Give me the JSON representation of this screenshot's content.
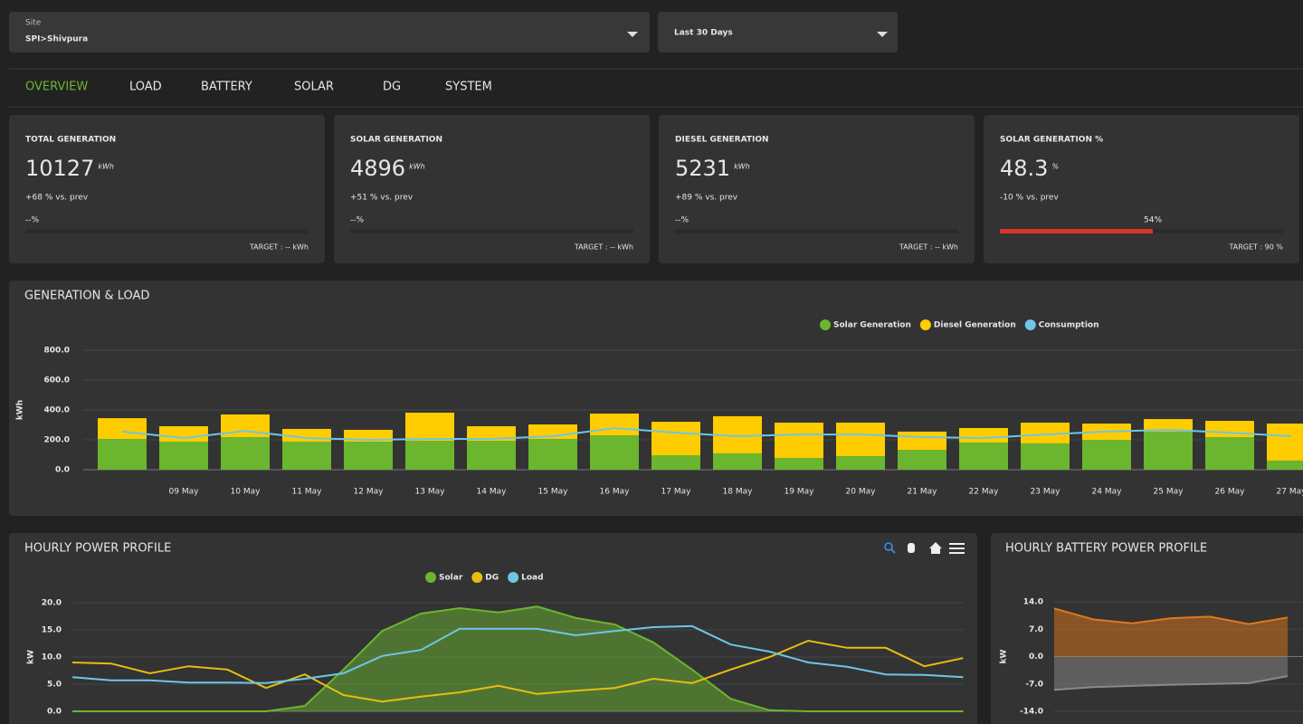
{
  "filters": {
    "site_label": "Site",
    "site": "SPI>Shivpura",
    "period": "Last 30 Days"
  },
  "tabs": [
    "OVERVIEW",
    "LOAD",
    "BATTERY",
    "SOLAR",
    "DG",
    "SYSTEM"
  ],
  "kpis": [
    {
      "title": "TOTAL GENERATION",
      "value": 10127,
      "unit": "kWh",
      "change": "+68 % vs. prev",
      "progress_label": "--%",
      "target": "TARGET : -- kWh"
    },
    {
      "title": "SOLAR GENERATION",
      "value": 4896,
      "unit": "kWh",
      "change": "+51 % vs. prev",
      "progress_label": "--%",
      "target": "TARGET : -- kWh"
    },
    {
      "title": "DIESEL GENERATION",
      "value": 5231,
      "unit": "kWh",
      "change": "+89 % vs. prev",
      "progress_label": "--%",
      "target": "TARGET : -- kWh"
    },
    {
      "title": "SOLAR GENERATION %",
      "value": 48.3,
      "unit": "%",
      "change": "-10 % vs. prev",
      "progress": 54,
      "progress_label": "54%",
      "target": "TARGET : 90 %",
      "progress_color": "#d9342b"
    }
  ],
  "chart_data": [
    {
      "type": "bar",
      "title": "GENERATION & LOAD",
      "ylabel": "kWh",
      "categories": [
        null,
        "09 May",
        "10 May",
        "11 May",
        "12 May",
        "13 May",
        "14 May",
        "15 May",
        "16 May",
        "17 May",
        "18 May",
        "19 May",
        "20 May",
        "21 May",
        "22 May",
        "23 May",
        "24 May",
        "25 May",
        "26 May",
        "27 May"
      ],
      "series": [
        {
          "name": "Solar Generation",
          "type": "bar",
          "color": "#6bb52f",
          "values": [
            206,
            188,
            218,
            188,
            188,
            194,
            194,
            206,
            230,
            97,
            109,
            79,
            91,
            133,
            182,
            176,
            200,
            255,
            218,
            61
          ]
        },
        {
          "name": "Diesel Generation",
          "type": "bar",
          "color": "#ffcc00",
          "values": [
            139,
            103,
            152,
            85,
            79,
            188,
            97,
            97,
            146,
            224,
            249,
            236,
            224,
            122,
            97,
            139,
            109,
            84,
            109,
            248
          ]
        },
        {
          "name": "Consumption",
          "type": "line",
          "color": "#6ec6e6",
          "values": [
            255,
            212,
            260,
            212,
            200,
            206,
            206,
            224,
            279,
            248,
            224,
            236,
            236,
            218,
            212,
            236,
            255,
            267,
            248,
            224
          ]
        }
      ],
      "ylim": [
        0,
        800
      ],
      "yticks": [
        {
          "value": 0,
          "label": "0.0"
        },
        {
          "value": 200,
          "label": "200.0"
        },
        {
          "value": 400,
          "label": "400.0"
        },
        {
          "value": 600,
          "label": "600.0"
        },
        {
          "value": 800,
          "label": "800.0"
        }
      ],
      "grid": true,
      "legend": "top"
    },
    {
      "type": "line",
      "title": "HOURLY POWER PROFILE",
      "ylabel": "kW",
      "series": [
        {
          "name": "Solar",
          "type": "area",
          "color": "#6bb52f",
          "values": [
            0,
            0,
            0,
            0,
            0,
            0,
            1,
            7.7,
            14.8,
            18,
            19,
            18.2,
            19.3,
            17.2,
            16,
            12.7,
            7.7,
            2.3,
            0.2,
            0,
            0,
            0,
            0,
            0
          ]
        },
        {
          "name": "DG",
          "type": "line",
          "color": "#e8bd10",
          "values": [
            9,
            8.8,
            7,
            8.3,
            7.7,
            4.3,
            6.8,
            3,
            1.8,
            2.7,
            3.5,
            4.7,
            3.2,
            3.8,
            4.3,
            6,
            5.2,
            7.7,
            10,
            13,
            11.7,
            11.7,
            8.3,
            9.8
          ]
        },
        {
          "name": "Load",
          "type": "line",
          "color": "#6ec6e6",
          "values": [
            6.3,
            5.7,
            5.7,
            5.3,
            5.3,
            5.2,
            6,
            7,
            10.2,
            11.3,
            15.2,
            15.2,
            15.2,
            14,
            14.8,
            15.5,
            15.7,
            12.3,
            11,
            9,
            8.2,
            6.8,
            6.7,
            6.3
          ]
        }
      ],
      "ylim": [
        0,
        20
      ],
      "yticks": [
        {
          "value": 0,
          "label": "0.0"
        },
        {
          "value": 5,
          "label": "5.0"
        },
        {
          "value": 10,
          "label": "10.0"
        },
        {
          "value": 15,
          "label": "15.0"
        },
        {
          "value": 20,
          "label": "20.0"
        }
      ],
      "grid": true,
      "legend": "top"
    },
    {
      "type": "area",
      "title": "HOURLY BATTERY POWER PROFILE",
      "ylabel": "kW",
      "series": [
        {
          "type": "area",
          "color": "#e0781c",
          "values": [
            12.3,
            9.5,
            8.5,
            9.8,
            10.2,
            8.3,
            10
          ]
        },
        {
          "type": "area",
          "color": "#8a8a8a",
          "values": [
            -8.5,
            -7.8,
            -7.5,
            -7.2,
            -7,
            -6.8,
            -5
          ]
        }
      ],
      "ylim": [
        -14,
        14
      ],
      "yticks": [
        {
          "value": -14,
          "label": "-14.0"
        },
        {
          "value": -7,
          "label": "-7.0"
        },
        {
          "value": 0,
          "label": "0.0"
        },
        {
          "value": 7,
          "label": "7.0"
        },
        {
          "value": 14,
          "label": "14.0"
        }
      ],
      "grid": true
    }
  ]
}
